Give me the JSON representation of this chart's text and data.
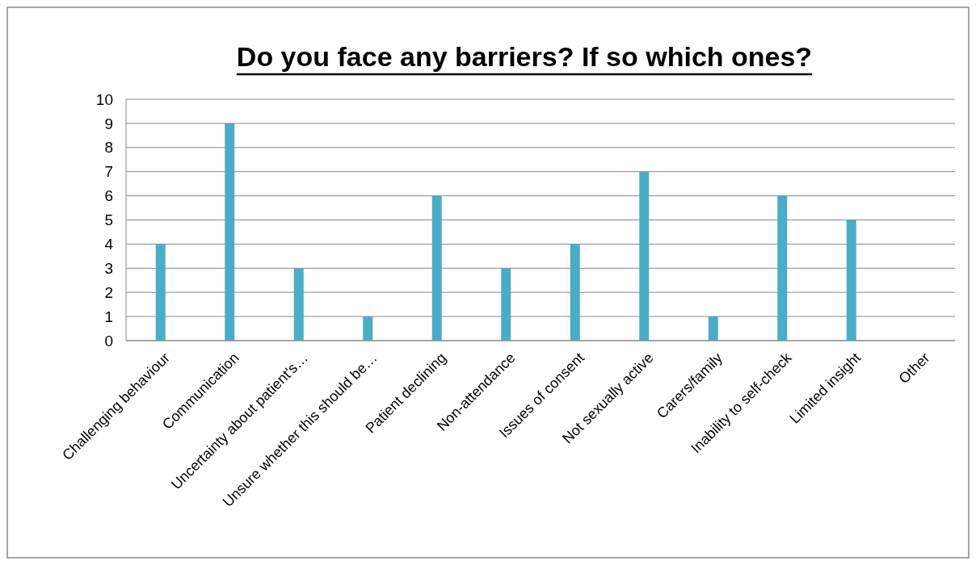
{
  "chart_data": {
    "type": "bar",
    "title": "Do you face any barriers? If so which ones?",
    "categories": [
      "Challenging behaviour",
      "Communication",
      "Uncertainty about patient's…",
      "Unsure whether this should be…",
      "Patient declining",
      "Non-attendance",
      "Issues of consent",
      "Not sexually active",
      "Carers/family",
      "Inability to self-check",
      "Limited insight",
      "Other"
    ],
    "values": [
      4,
      9,
      3,
      1,
      6,
      3,
      4,
      7,
      1,
      6,
      5,
      0
    ],
    "color": "#4bacc6",
    "ylim": [
      0,
      10
    ],
    "yticks": [
      0,
      1,
      2,
      3,
      4,
      5,
      6,
      7,
      8,
      9,
      10
    ],
    "grid": "y"
  }
}
